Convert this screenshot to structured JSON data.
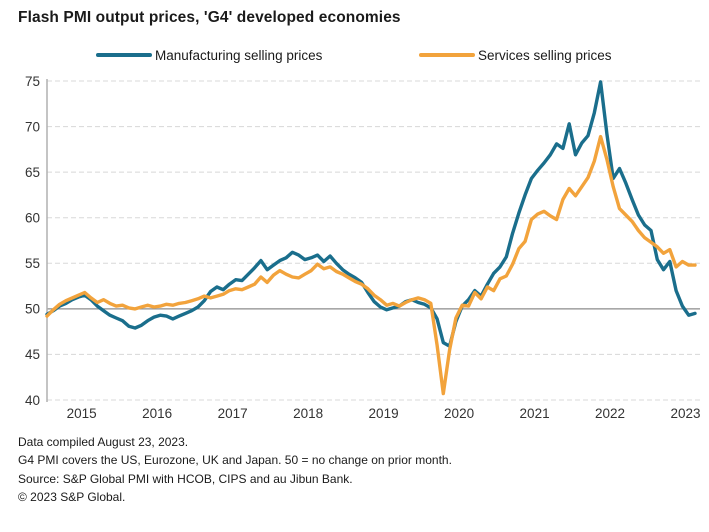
{
  "title": "Flash PMI output prices, 'G4' developed economies",
  "footnotes": [
    "Data compiled August 23, 2023.",
    "G4 PMI covers the US, Eurozone, UK and Japan. 50 = no change on prior month.",
    "Source: S&P Global PMI with HCOB, CIPS and au Jibun Bank.",
    "© 2023 S&P Global."
  ],
  "colors": {
    "manufacturing": "#1A6E8C",
    "services": "#F2A33C",
    "gridline": "#D8D8D8",
    "reference_line": "#8C8C8C",
    "axis_line": "#B0B0B0",
    "axis_text": "#333333"
  },
  "chart_data": {
    "type": "line",
    "title": "Flash PMI output prices, 'G4' developed economies",
    "x_frequency": "monthly",
    "x_range": "Jan 2015 - Aug 2023",
    "x_tick_labels": [
      "2015",
      "2016",
      "2017",
      "2018",
      "2019",
      "2020",
      "2021",
      "2022",
      "2023"
    ],
    "ylim": [
      40,
      75
    ],
    "y_ticks": [
      40,
      45,
      50,
      55,
      60,
      65,
      70,
      75
    ],
    "reference_line": 50,
    "grid": "horizontal dashed",
    "legend_position": "top",
    "series": [
      {
        "name": "Manufacturing selling prices",
        "color": "#1A6E8C",
        "values": [
          49.4,
          49.8,
          50.3,
          50.6,
          51.0,
          51.3,
          51.5,
          51.0,
          50.3,
          49.8,
          49.3,
          49.0,
          48.7,
          48.1,
          47.9,
          48.2,
          48.7,
          49.1,
          49.3,
          49.2,
          48.9,
          49.2,
          49.5,
          49.8,
          50.2,
          50.9,
          51.9,
          52.4,
          52.1,
          52.7,
          53.2,
          53.1,
          53.8,
          54.5,
          55.3,
          54.3,
          54.8,
          55.3,
          55.6,
          56.2,
          55.9,
          55.4,
          55.6,
          55.9,
          55.2,
          55.8,
          55.0,
          54.3,
          53.8,
          53.4,
          52.9,
          51.8,
          50.8,
          50.2,
          49.9,
          50.1,
          50.3,
          50.8,
          51.0,
          50.7,
          50.5,
          50.1,
          48.9,
          46.3,
          45.9,
          48.6,
          50.3,
          51.0,
          52.0,
          51.4,
          52.7,
          53.9,
          54.6,
          55.7,
          58.3,
          60.5,
          62.5,
          64.3,
          65.2,
          66.0,
          66.9,
          68.1,
          67.6,
          70.3,
          66.9,
          68.2,
          69.0,
          71.5,
          74.9,
          69.2,
          64.3,
          65.4,
          63.8,
          62.0,
          60.3,
          59.2,
          58.6,
          55.4,
          54.3,
          55.2,
          52.0,
          50.3,
          49.3,
          49.5
        ]
      },
      {
        "name": "Services selling prices",
        "color": "#F2A33C",
        "values": [
          49.2,
          49.9,
          50.5,
          50.9,
          51.2,
          51.5,
          51.8,
          51.2,
          50.7,
          51.0,
          50.6,
          50.3,
          50.4,
          50.1,
          50.0,
          50.2,
          50.4,
          50.2,
          50.3,
          50.5,
          50.4,
          50.6,
          50.7,
          50.9,
          51.1,
          51.4,
          51.2,
          51.4,
          51.6,
          52.0,
          52.2,
          52.1,
          52.4,
          52.7,
          53.5,
          52.9,
          53.7,
          54.2,
          53.8,
          53.5,
          53.4,
          53.8,
          54.2,
          54.9,
          54.4,
          54.6,
          54.1,
          53.8,
          53.4,
          53.0,
          52.7,
          52.2,
          51.5,
          51.0,
          50.4,
          50.6,
          50.3,
          50.7,
          51.0,
          51.2,
          51.0,
          50.6,
          46.0,
          40.7,
          45.5,
          49.0,
          50.4,
          50.3,
          51.8,
          51.1,
          52.4,
          52.0,
          53.3,
          53.6,
          54.9,
          56.6,
          57.4,
          59.8,
          60.4,
          60.7,
          60.2,
          59.8,
          62.0,
          63.2,
          62.4,
          63.4,
          64.4,
          66.2,
          68.9,
          66.4,
          63.4,
          61.0,
          60.3,
          59.6,
          58.6,
          57.8,
          57.3,
          56.8,
          56.1,
          56.5,
          54.6,
          55.2,
          54.8,
          54.8
        ]
      }
    ]
  }
}
